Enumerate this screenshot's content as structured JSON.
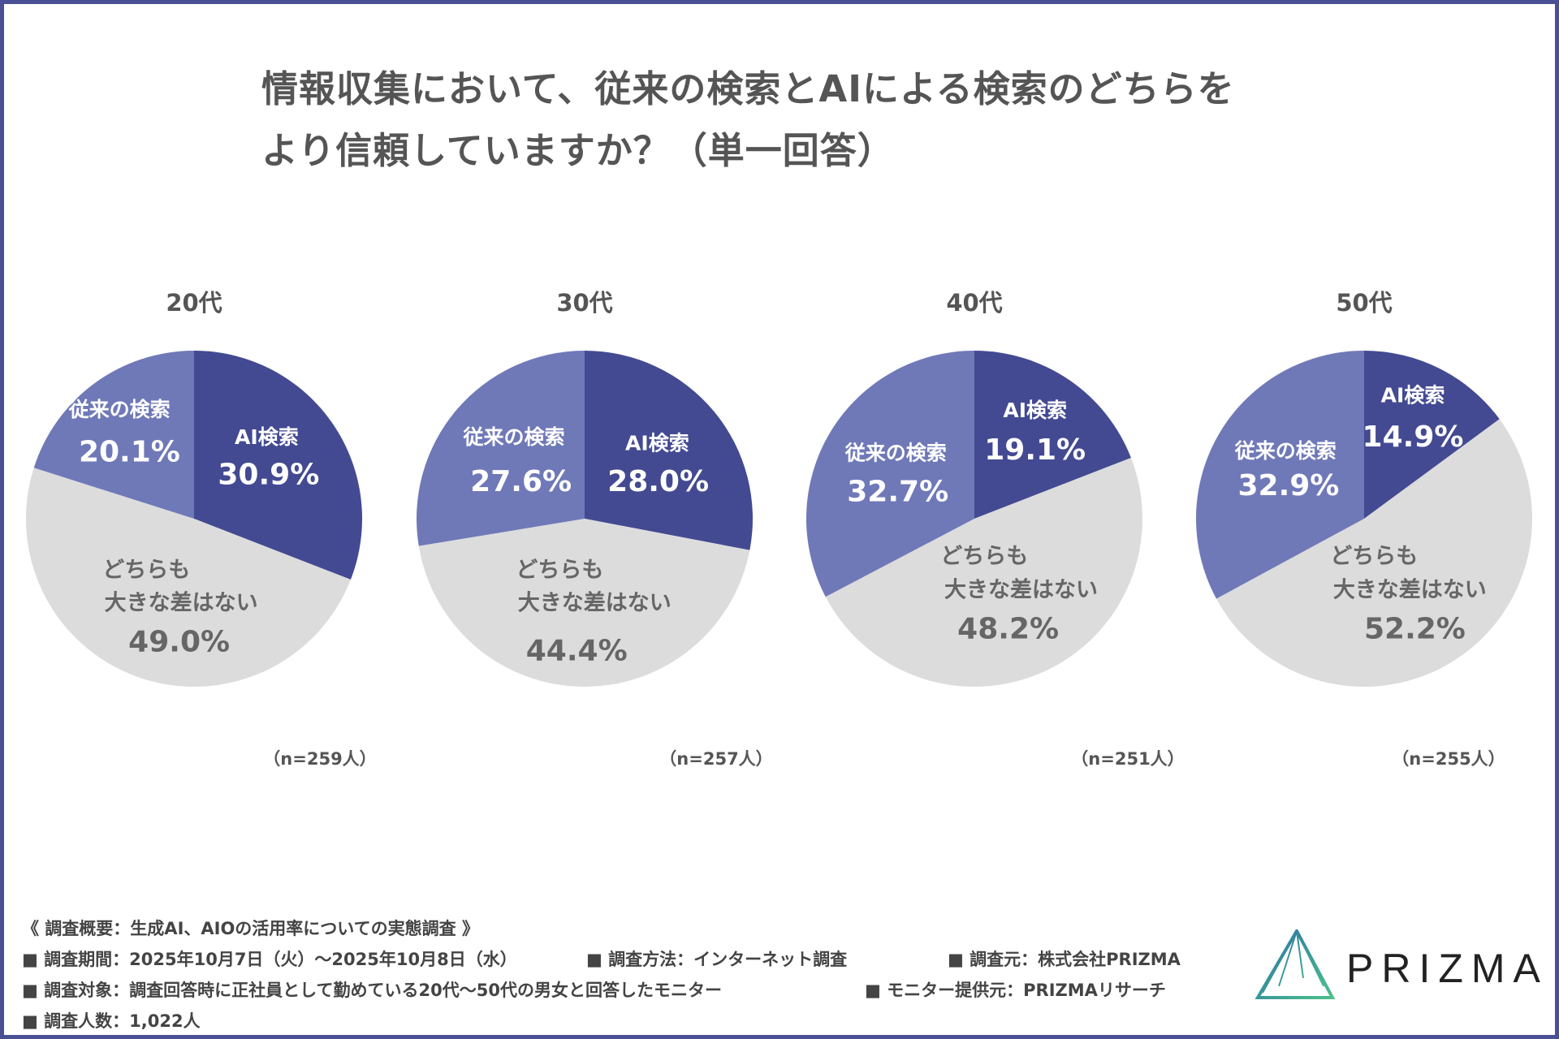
{
  "title": {
    "line1": "情報収集において、従来の検索とAIによる検索のどちらを",
    "line2": "より信頼していますか？（単一回答）"
  },
  "colors": {
    "ai": "#434a92",
    "traditional": "#6f79b8",
    "neither": "#dcdcdc",
    "frame": "#4a4f96"
  },
  "chart_data": [
    {
      "type": "pie",
      "title": "20代",
      "n_label": "（n=259人）",
      "slices": [
        {
          "label": "AI検索",
          "value": 30.9,
          "value_label": "30.9%"
        },
        {
          "label": "どちらも 大きな差はない",
          "label_lines": [
            "どちらも",
            "大きな差はない"
          ],
          "value": 49.0,
          "value_label": "49.0%"
        },
        {
          "label": "従来の検索",
          "value": 20.1,
          "value_label": "20.1%"
        }
      ]
    },
    {
      "type": "pie",
      "title": "30代",
      "n_label": "（n=257人）",
      "slices": [
        {
          "label": "AI検索",
          "value": 28.0,
          "value_label": "28.0%"
        },
        {
          "label": "どちらも 大きな差はない",
          "label_lines": [
            "どちらも",
            "大きな差はない"
          ],
          "value": 44.4,
          "value_label": "44.4%"
        },
        {
          "label": "従来の検索",
          "value": 27.6,
          "value_label": "27.6%"
        }
      ]
    },
    {
      "type": "pie",
      "title": "40代",
      "n_label": "（n=251人）",
      "slices": [
        {
          "label": "AI検索",
          "value": 19.1,
          "value_label": "19.1%"
        },
        {
          "label": "どちらも 大きな差はない",
          "label_lines": [
            "どちらも",
            "大きな差はない"
          ],
          "value": 48.2,
          "value_label": "48.2%"
        },
        {
          "label": "従来の検索",
          "value": 32.7,
          "value_label": "32.7%"
        }
      ]
    },
    {
      "type": "pie",
      "title": "50代",
      "n_label": "（n=255人）",
      "slices": [
        {
          "label": "AI検索",
          "value": 14.9,
          "value_label": "14.9%"
        },
        {
          "label": "どちらも 大きな差はない",
          "label_lines": [
            "どちらも",
            "大きな差はない"
          ],
          "value": 52.2,
          "value_label": "52.2%"
        },
        {
          "label": "従来の検索",
          "value": 32.9,
          "value_label": "32.9%"
        }
      ]
    }
  ],
  "footer": {
    "overview": "《 調査概要：生成AI、AIOの活用率についての実態調査 》",
    "period": "■ 調査期間：2025年10月7日（火）～2025年10月8日（水）",
    "method": "■ 調査方法：インターネット調査",
    "source": "■ 調査元：株式会社PRIZMA",
    "target": "■ 調査対象：調査回答時に正社員として勤めている20代～50代の男女と回答したモニター",
    "provider": "■ モニター提供元：PRIZMAリサーチ",
    "count": "■ 調査人数：1,022人"
  },
  "logo": {
    "text": "PRIZMA"
  }
}
